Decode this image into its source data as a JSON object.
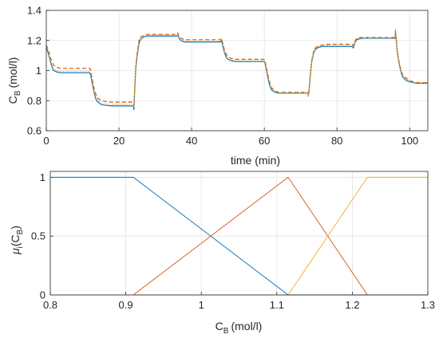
{
  "chart_data": [
    {
      "type": "line",
      "xlabel": "time (min)",
      "ylabel_main": "C",
      "ylabel_sub": "B",
      "ylabel_unit": "(mol/l)",
      "xlim": [
        0,
        105
      ],
      "ylim": [
        0.6,
        1.4
      ],
      "xticks": [
        "0",
        "20",
        "40",
        "60",
        "80",
        "100"
      ],
      "xtick_values": [
        0,
        20,
        40,
        60,
        80,
        100
      ],
      "yticks": [
        "0.6",
        "0.8",
        "1",
        "1.2",
        "1.4"
      ],
      "ytick_values": [
        0.6,
        0.8,
        1.0,
        1.2,
        1.4
      ],
      "grid": true,
      "series": [
        {
          "color": "#0072BD",
          "style": "solid",
          "x": [
            0,
            0.5,
            1,
            1.5,
            2,
            3,
            4,
            6,
            9,
            12,
            12.2,
            12.6,
            13,
            13.5,
            14,
            15,
            16,
            18,
            21,
            24,
            24.1,
            24.3,
            24.6,
            25,
            25.5,
            26,
            27,
            28,
            30,
            33,
            36,
            36.2,
            36.5,
            37,
            37.5,
            38,
            39,
            41,
            44,
            48,
            48.2,
            48.5,
            49,
            49.5,
            50,
            51,
            52,
            54,
            57,
            60,
            60.2,
            60.6,
            61,
            61.5,
            62,
            63,
            64,
            66,
            69,
            72,
            72.1,
            72.3,
            72.6,
            73,
            73.5,
            74,
            75,
            76,
            78,
            81,
            84,
            84.2,
            84.5,
            85,
            85.5,
            86,
            87,
            88,
            90,
            93,
            96,
            96.1,
            96.3,
            96.6,
            97,
            97.5,
            98,
            99,
            100,
            101,
            102,
            104,
            105
          ],
          "y": [
            1.15,
            1.12,
            1.07,
            1.03,
            1.0,
            0.99,
            0.985,
            0.985,
            0.985,
            0.985,
            0.97,
            0.92,
            0.87,
            0.82,
            0.795,
            0.775,
            0.77,
            0.765,
            0.765,
            0.765,
            0.74,
            0.85,
            1.0,
            1.1,
            1.18,
            1.21,
            1.225,
            1.23,
            1.23,
            1.23,
            1.23,
            1.24,
            1.215,
            1.2,
            1.195,
            1.19,
            1.19,
            1.19,
            1.19,
            1.19,
            1.2,
            1.17,
            1.12,
            1.09,
            1.075,
            1.065,
            1.06,
            1.06,
            1.06,
            1.06,
            1.05,
            1.0,
            0.95,
            0.9,
            0.87,
            0.855,
            0.85,
            0.85,
            0.85,
            0.85,
            0.83,
            0.86,
            0.95,
            1.05,
            1.11,
            1.14,
            1.155,
            1.16,
            1.16,
            1.16,
            1.16,
            1.16,
            1.15,
            1.19,
            1.205,
            1.21,
            1.215,
            1.215,
            1.215,
            1.215,
            1.215,
            1.27,
            1.2,
            1.12,
            1.06,
            1.0,
            0.96,
            0.935,
            0.925,
            0.92,
            0.915,
            0.915,
            0.915
          ]
        },
        {
          "color": "#D95319",
          "style": "dashed",
          "x": [
            0,
            0.5,
            1,
            1.5,
            2,
            3,
            4,
            6,
            9,
            12,
            12.2,
            12.6,
            13,
            13.5,
            14,
            15,
            16,
            18,
            21,
            24,
            24.1,
            24.3,
            24.6,
            25,
            25.5,
            26,
            27,
            28,
            30,
            33,
            36,
            36.2,
            36.5,
            37,
            37.5,
            38,
            39,
            41,
            44,
            48,
            48.2,
            48.5,
            49,
            49.5,
            50,
            51,
            52,
            54,
            57,
            60,
            60.2,
            60.6,
            61,
            61.5,
            62,
            63,
            64,
            66,
            69,
            72,
            72.1,
            72.3,
            72.6,
            73,
            73.5,
            74,
            75,
            76,
            78,
            81,
            84,
            84.2,
            84.5,
            85,
            85.5,
            86,
            87,
            88,
            90,
            93,
            96,
            96.1,
            96.3,
            96.6,
            97,
            97.5,
            98,
            99,
            100,
            101,
            102,
            104,
            105
          ],
          "y": [
            1.17,
            1.14,
            1.1,
            1.06,
            1.035,
            1.02,
            1.015,
            1.015,
            1.015,
            1.015,
            1.0,
            0.95,
            0.9,
            0.85,
            0.82,
            0.8,
            0.795,
            0.79,
            0.79,
            0.79,
            0.77,
            0.87,
            1.02,
            1.12,
            1.2,
            1.225,
            1.235,
            1.24,
            1.24,
            1.24,
            1.24,
            1.25,
            1.23,
            1.215,
            1.21,
            1.205,
            1.205,
            1.205,
            1.205,
            1.205,
            1.215,
            1.19,
            1.14,
            1.11,
            1.09,
            1.08,
            1.075,
            1.075,
            1.075,
            1.075,
            1.065,
            1.02,
            0.97,
            0.92,
            0.885,
            0.865,
            0.855,
            0.855,
            0.855,
            0.855,
            0.835,
            0.87,
            0.96,
            1.06,
            1.12,
            1.15,
            1.165,
            1.17,
            1.175,
            1.175,
            1.175,
            1.175,
            1.165,
            1.2,
            1.215,
            1.22,
            1.22,
            1.22,
            1.22,
            1.22,
            1.22,
            1.26,
            1.21,
            1.13,
            1.07,
            1.015,
            0.975,
            0.95,
            0.935,
            0.925,
            0.92,
            0.92,
            0.92
          ]
        },
        {
          "color": "#EDB120",
          "style": "dotted",
          "x": [
            0,
            0.5,
            1,
            1.5,
            2,
            3,
            4,
            6,
            9,
            12,
            12.2,
            12.6,
            13,
            13.5,
            14,
            15,
            16,
            18,
            21,
            24,
            24.1,
            24.3,
            24.6,
            25,
            25.5,
            26,
            27,
            28,
            30,
            33,
            36,
            36.2,
            36.5,
            37,
            37.5,
            38,
            39,
            41,
            44,
            48,
            48.2,
            48.5,
            49,
            49.5,
            50,
            51,
            52,
            54,
            57,
            60,
            60.2,
            60.6,
            61,
            61.5,
            62,
            63,
            64,
            66,
            69,
            72,
            72.1,
            72.3,
            72.6,
            73,
            73.5,
            74,
            75,
            76,
            78,
            81,
            84,
            84.2,
            84.5,
            85,
            85.5,
            86,
            87,
            88,
            90,
            93,
            96,
            96.1,
            96.3,
            96.6,
            97,
            97.5,
            98,
            99,
            100,
            101,
            102,
            104,
            105
          ],
          "y": [
            1.16,
            1.13,
            1.08,
            1.04,
            1.01,
            1.0,
            0.995,
            0.995,
            0.995,
            0.995,
            0.98,
            0.93,
            0.88,
            0.83,
            0.805,
            0.785,
            0.78,
            0.775,
            0.775,
            0.775,
            0.755,
            0.86,
            1.01,
            1.11,
            1.19,
            1.215,
            1.23,
            1.235,
            1.235,
            1.235,
            1.235,
            1.245,
            1.22,
            1.205,
            1.2,
            1.195,
            1.195,
            1.195,
            1.195,
            1.195,
            1.205,
            1.18,
            1.13,
            1.1,
            1.08,
            1.07,
            1.065,
            1.065,
            1.065,
            1.065,
            1.055,
            1.01,
            0.96,
            0.91,
            0.875,
            0.86,
            0.852,
            0.852,
            0.852,
            0.852,
            0.832,
            0.865,
            0.955,
            1.055,
            1.115,
            1.145,
            1.16,
            1.165,
            1.168,
            1.168,
            1.168,
            1.168,
            1.158,
            1.195,
            1.21,
            1.215,
            1.218,
            1.218,
            1.218,
            1.218,
            1.218,
            1.265,
            1.205,
            1.125,
            1.065,
            1.008,
            0.968,
            0.942,
            0.93,
            0.922,
            0.918,
            0.918,
            0.918
          ]
        }
      ]
    },
    {
      "type": "line",
      "xlabel_main": "C",
      "xlabel_sub": "B",
      "xlabel_unit": "(mol/l)",
      "ylabel_main": "μ",
      "ylabel_i": "i",
      "ylabel_arg_main": "(C",
      "ylabel_arg_sub": "B",
      "ylabel_arg_close": ")",
      "xlim": [
        0.8,
        1.3
      ],
      "ylim": [
        0,
        1.05
      ],
      "xticks": [
        "0.8",
        "0.9",
        "1",
        "1.1",
        "1.2",
        "1.3"
      ],
      "xtick_values": [
        0.8,
        0.9,
        1.0,
        1.1,
        1.2,
        1.3
      ],
      "yticks": [
        "0",
        "0.5",
        "1"
      ],
      "ytick_values": [
        0,
        0.5,
        1.0
      ],
      "grid": true,
      "series": [
        {
          "color": "#0072BD",
          "x": [
            0.8,
            0.91,
            1.115,
            1.3
          ],
          "y": [
            1,
            1,
            0,
            0
          ]
        },
        {
          "color": "#D95319",
          "x": [
            0.8,
            0.91,
            1.115,
            1.22,
            1.3
          ],
          "y": [
            0,
            0,
            1,
            0,
            0
          ]
        },
        {
          "color": "#EDB120",
          "x": [
            0.8,
            1.115,
            1.22,
            1.3
          ],
          "y": [
            0,
            0,
            1,
            1
          ]
        }
      ]
    }
  ]
}
